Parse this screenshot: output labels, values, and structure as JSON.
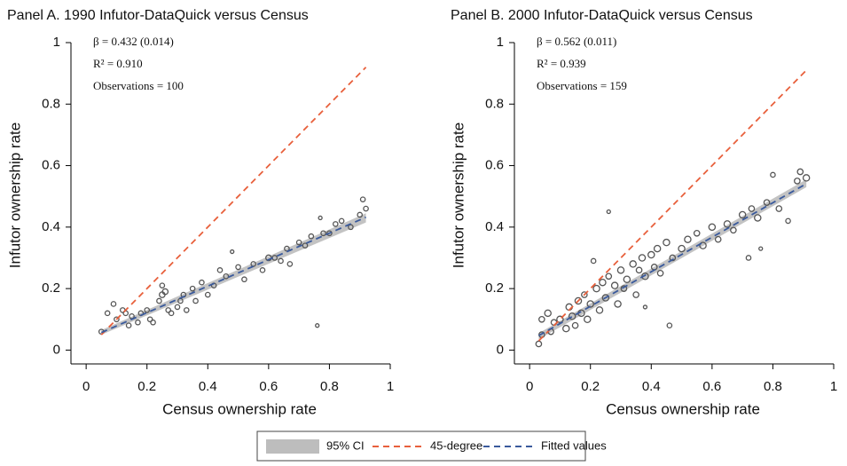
{
  "chart_data": [
    {
      "type": "scatter",
      "title": "Panel A. 1990 Infutor-DataQuick versus Census",
      "xlabel": "Census ownership rate",
      "ylabel": "Infutor ownership rate",
      "annotations": [
        "β = 0.432 (0.014)",
        "R² = 0.910",
        "Observations = 100"
      ],
      "xlim": [
        -0.05,
        1.0
      ],
      "ylim": [
        -0.045,
        1.0
      ],
      "xticks": [
        0,
        0.2,
        0.4,
        0.6,
        0.8,
        1
      ],
      "yticks": [
        0,
        0.2,
        0.4,
        0.6,
        0.8,
        1
      ],
      "points": {
        "x": [
          0.05,
          0.07,
          0.09,
          0.1,
          0.12,
          0.13,
          0.14,
          0.15,
          0.17,
          0.18,
          0.2,
          0.21,
          0.22,
          0.24,
          0.25,
          0.25,
          0.26,
          0.27,
          0.28,
          0.3,
          0.31,
          0.32,
          0.33,
          0.35,
          0.36,
          0.38,
          0.4,
          0.42,
          0.44,
          0.46,
          0.48,
          0.5,
          0.52,
          0.55,
          0.58,
          0.6,
          0.62,
          0.64,
          0.66,
          0.67,
          0.7,
          0.72,
          0.74,
          0.76,
          0.77,
          0.78,
          0.8,
          0.82,
          0.84,
          0.87,
          0.9,
          0.91,
          0.92
        ],
        "y": [
          0.06,
          0.12,
          0.15,
          0.1,
          0.13,
          0.12,
          0.08,
          0.11,
          0.09,
          0.12,
          0.13,
          0.1,
          0.09,
          0.16,
          0.18,
          0.21,
          0.19,
          0.13,
          0.12,
          0.14,
          0.16,
          0.18,
          0.13,
          0.2,
          0.16,
          0.22,
          0.18,
          0.21,
          0.26,
          0.24,
          0.32,
          0.27,
          0.23,
          0.28,
          0.26,
          0.3,
          0.3,
          0.29,
          0.33,
          0.28,
          0.35,
          0.34,
          0.37,
          0.08,
          0.43,
          0.38,
          0.38,
          0.41,
          0.42,
          0.4,
          0.44,
          0.49,
          0.46
        ],
        "size": [
          2,
          2,
          2,
          2,
          2,
          2,
          2,
          2,
          2,
          2,
          2,
          2,
          2,
          2,
          3,
          2,
          3,
          2,
          2,
          2,
          2,
          2,
          2,
          2,
          2,
          2,
          2,
          2,
          2,
          2,
          1,
          2,
          2,
          2,
          2,
          3,
          2,
          2,
          2,
          2,
          2,
          2,
          2,
          1,
          1,
          2,
          2,
          2,
          2,
          2,
          2,
          2,
          2
        ]
      },
      "ci": {
        "x": [
          0.05,
          0.92
        ],
        "lower": [
          0.05,
          0.415
        ],
        "upper": [
          0.065,
          0.445
        ]
      },
      "diagonal": {
        "x": [
          0.05,
          0.92
        ],
        "y": [
          0.05,
          0.92
        ]
      },
      "fit": {
        "x": [
          0.05,
          0.92
        ],
        "y": [
          0.057,
          0.432
        ]
      }
    },
    {
      "type": "scatter",
      "title": "Panel B. 2000 Infutor-DataQuick versus Census",
      "xlabel": "Census ownership rate",
      "ylabel": "Infutor ownership rate",
      "annotations": [
        "β = 0.562 (0.011)",
        "R² = 0.939",
        "Observations = 159"
      ],
      "xlim": [
        -0.05,
        1.0
      ],
      "ylim": [
        -0.045,
        1.0
      ],
      "xticks": [
        0,
        0.2,
        0.4,
        0.6,
        0.8,
        1
      ],
      "yticks": [
        0,
        0.2,
        0.4,
        0.6,
        0.8,
        1
      ],
      "points": {
        "x": [
          0.03,
          0.04,
          0.04,
          0.06,
          0.07,
          0.08,
          0.1,
          0.12,
          0.13,
          0.14,
          0.15,
          0.16,
          0.17,
          0.18,
          0.19,
          0.2,
          0.21,
          0.22,
          0.23,
          0.24,
          0.25,
          0.26,
          0.26,
          0.28,
          0.29,
          0.3,
          0.31,
          0.32,
          0.34,
          0.35,
          0.36,
          0.37,
          0.38,
          0.38,
          0.4,
          0.41,
          0.42,
          0.43,
          0.45,
          0.46,
          0.47,
          0.5,
          0.52,
          0.55,
          0.57,
          0.6,
          0.62,
          0.65,
          0.67,
          0.7,
          0.72,
          0.73,
          0.75,
          0.76,
          0.78,
          0.8,
          0.82,
          0.85,
          0.88,
          0.89,
          0.91
        ],
        "y": [
          0.02,
          0.05,
          0.1,
          0.12,
          0.06,
          0.09,
          0.1,
          0.07,
          0.14,
          0.11,
          0.08,
          0.16,
          0.12,
          0.18,
          0.1,
          0.15,
          0.29,
          0.2,
          0.13,
          0.22,
          0.17,
          0.24,
          0.45,
          0.21,
          0.15,
          0.26,
          0.2,
          0.23,
          0.28,
          0.18,
          0.26,
          0.3,
          0.24,
          0.14,
          0.31,
          0.27,
          0.33,
          0.25,
          0.35,
          0.08,
          0.3,
          0.33,
          0.36,
          0.38,
          0.34,
          0.4,
          0.36,
          0.41,
          0.39,
          0.44,
          0.3,
          0.46,
          0.43,
          0.33,
          0.48,
          0.57,
          0.46,
          0.42,
          0.55,
          0.58,
          0.56
        ],
        "size": [
          3,
          3,
          3,
          4,
          3,
          3,
          4,
          4,
          4,
          4,
          3,
          4,
          4,
          3,
          4,
          4,
          2,
          4,
          4,
          4,
          4,
          3,
          1,
          4,
          4,
          4,
          3,
          4,
          4,
          3,
          3,
          4,
          4,
          1,
          4,
          3,
          4,
          3,
          4,
          2,
          3,
          4,
          4,
          3,
          4,
          4,
          3,
          4,
          3,
          4,
          2,
          3,
          4,
          1,
          3,
          2,
          3,
          2,
          3,
          3,
          4
        ]
      },
      "ci": {
        "x": [
          0.03,
          0.91
        ],
        "lower": [
          0.035,
          0.53
        ],
        "upper": [
          0.055,
          0.555
        ]
      },
      "diagonal": {
        "x": [
          0.03,
          0.91
        ],
        "y": [
          0.03,
          0.91
        ]
      },
      "fit": {
        "x": [
          0.03,
          0.91
        ],
        "y": [
          0.047,
          0.541
        ]
      }
    }
  ],
  "legend": [
    {
      "name": "95% CI",
      "color": "#bdbdbd"
    },
    {
      "name": "45-degree",
      "color": "#e8603c"
    },
    {
      "name": "Fitted values",
      "color": "#3a5a9c"
    }
  ]
}
